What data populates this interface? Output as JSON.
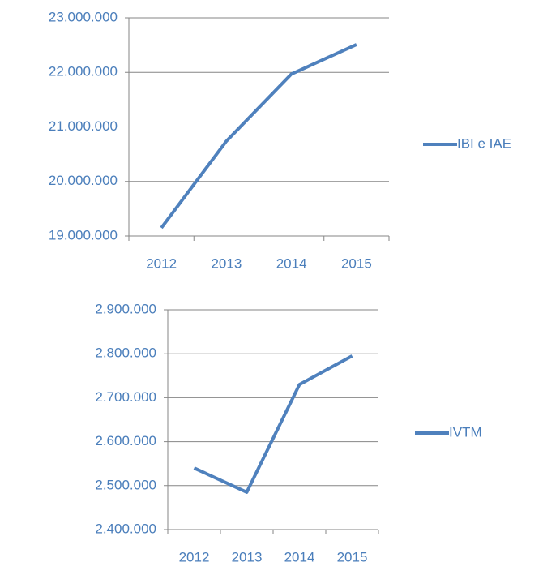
{
  "chart_data": [
    {
      "type": "line",
      "categories": [
        "2012",
        "2013",
        "2014",
        "2015"
      ],
      "series": [
        {
          "name": "IBI e IAE",
          "color": "#4f81bd",
          "values": [
            19150000,
            20740000,
            21970000,
            22510000
          ]
        }
      ],
      "ylim": [
        19000000,
        23000000
      ],
      "yticks": [
        {
          "value": 19000000,
          "label": "19.000.000"
        },
        {
          "value": 20000000,
          "label": "20.000.000"
        },
        {
          "value": 21000000,
          "label": "21.000.000"
        },
        {
          "value": 22000000,
          "label": "22.000.000"
        },
        {
          "value": 23000000,
          "label": "23.000.000"
        }
      ],
      "grid": true,
      "legend": "right"
    },
    {
      "type": "line",
      "categories": [
        "2012",
        "2013",
        "2014",
        "2015"
      ],
      "series": [
        {
          "name": "IVTM",
          "color": "#4f81bd",
          "values": [
            2540000,
            2485000,
            2730000,
            2795000
          ]
        }
      ],
      "ylim": [
        2400000,
        2900000
      ],
      "yticks": [
        {
          "value": 2400000,
          "label": "2.400.000"
        },
        {
          "value": 2500000,
          "label": "2.500.000"
        },
        {
          "value": 2600000,
          "label": "2.600.000"
        },
        {
          "value": 2700000,
          "label": "2.700.000"
        },
        {
          "value": 2800000,
          "label": "2.800.000"
        },
        {
          "value": 2900000,
          "label": "2.900.000"
        }
      ],
      "grid": true,
      "legend": "right"
    }
  ]
}
